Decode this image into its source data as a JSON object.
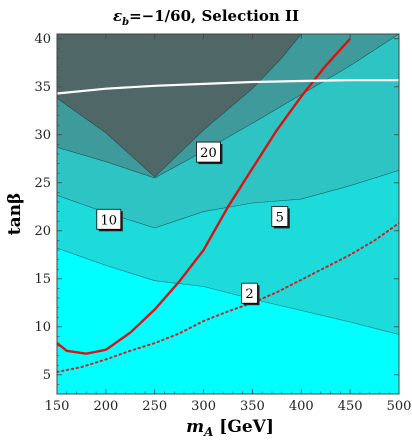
{
  "chart_data": {
    "type": "contour",
    "title": "ε_b=−1/60, Selection II",
    "title_parts": {
      "symbol": "ε",
      "subscript": "b",
      "rest": "=−1/60, Selection II"
    },
    "xlabel": "m_A [GeV]",
    "xlabel_parts": {
      "var": "m",
      "sub": "A",
      "unit": " [GeV]"
    },
    "ylabel": "tanβ",
    "xlim": [
      150,
      500
    ],
    "ylim": [
      3,
      40.5
    ],
    "xticks": [
      150,
      200,
      250,
      300,
      350,
      400,
      450,
      500
    ],
    "yticks": [
      5,
      10,
      15,
      20,
      25,
      30,
      35,
      40
    ],
    "colors": {
      "band_background": "#00ffff",
      "band_2_5": "#1ddbdb",
      "band_5_10": "#2ec4c4",
      "band_10_20": "#3f9b9b",
      "band_above_20": "#4f6767",
      "red_curve": "#dd1111",
      "dotted_curve": "#cc2222",
      "white_curve": "#ffffff"
    },
    "contours": [
      {
        "level": "2",
        "points": [
          [
            150,
            18.2
          ],
          [
            200,
            16.4
          ],
          [
            250,
            14.8
          ],
          [
            300,
            14.2
          ],
          [
            350,
            12.9
          ],
          [
            400,
            11.7
          ],
          [
            450,
            10.5
          ],
          [
            500,
            9.2
          ]
        ]
      },
      {
        "level": "5",
        "points": [
          [
            150,
            23.7
          ],
          [
            200,
            21.9
          ],
          [
            250,
            20.3
          ],
          [
            300,
            22.0
          ],
          [
            350,
            22.9
          ],
          [
            400,
            23.3
          ],
          [
            450,
            24.7
          ],
          [
            500,
            26.3
          ]
        ]
      },
      {
        "level": "10",
        "points": [
          [
            150,
            28.7
          ],
          [
            200,
            27.2
          ],
          [
            250,
            25.5
          ],
          [
            300,
            28.3
          ],
          [
            350,
            31.2
          ],
          [
            400,
            34.2
          ],
          [
            450,
            37.2
          ],
          [
            500,
            40.5
          ]
        ]
      },
      {
        "level": "20",
        "points": [
          [
            150,
            40.5
          ],
          [
            175,
            40.5
          ]
        ]
      }
    ],
    "contour_labels": [
      {
        "text": "20",
        "x": 305,
        "y": 28.2
      },
      {
        "text": "10",
        "x": 203,
        "y": 21.2
      },
      {
        "text": "5",
        "x": 378,
        "y": 21.5
      },
      {
        "text": "2",
        "x": 347,
        "y": 13.5
      }
    ],
    "series": [
      {
        "style": "red-solid",
        "points": [
          [
            150,
            8.3
          ],
          [
            160,
            7.5
          ],
          [
            180,
            7.2
          ],
          [
            200,
            7.6
          ],
          [
            225,
            9.4
          ],
          [
            250,
            11.8
          ],
          [
            275,
            14.7
          ],
          [
            300,
            18.0
          ],
          [
            325,
            22.5
          ],
          [
            350,
            26.5
          ],
          [
            375,
            30.5
          ],
          [
            400,
            34.0
          ],
          [
            425,
            37.2
          ],
          [
            450,
            40.0
          ]
        ]
      },
      {
        "style": "red-dotted",
        "points": [
          [
            150,
            5.3
          ],
          [
            175,
            5.8
          ],
          [
            200,
            6.6
          ],
          [
            225,
            7.5
          ],
          [
            250,
            8.3
          ],
          [
            275,
            9.3
          ],
          [
            300,
            10.6
          ],
          [
            325,
            11.6
          ],
          [
            350,
            12.5
          ],
          [
            375,
            13.6
          ],
          [
            400,
            14.9
          ],
          [
            425,
            16.2
          ],
          [
            450,
            17.5
          ],
          [
            475,
            19.0
          ],
          [
            500,
            20.8
          ]
        ]
      },
      {
        "style": "white-solid",
        "points": [
          [
            150,
            34.3
          ],
          [
            200,
            34.8
          ],
          [
            250,
            35.1
          ],
          [
            300,
            35.3
          ],
          [
            350,
            35.5
          ],
          [
            400,
            35.6
          ],
          [
            450,
            35.7
          ],
          [
            500,
            35.7
          ]
        ]
      }
    ],
    "grid": false,
    "legend": "none"
  }
}
